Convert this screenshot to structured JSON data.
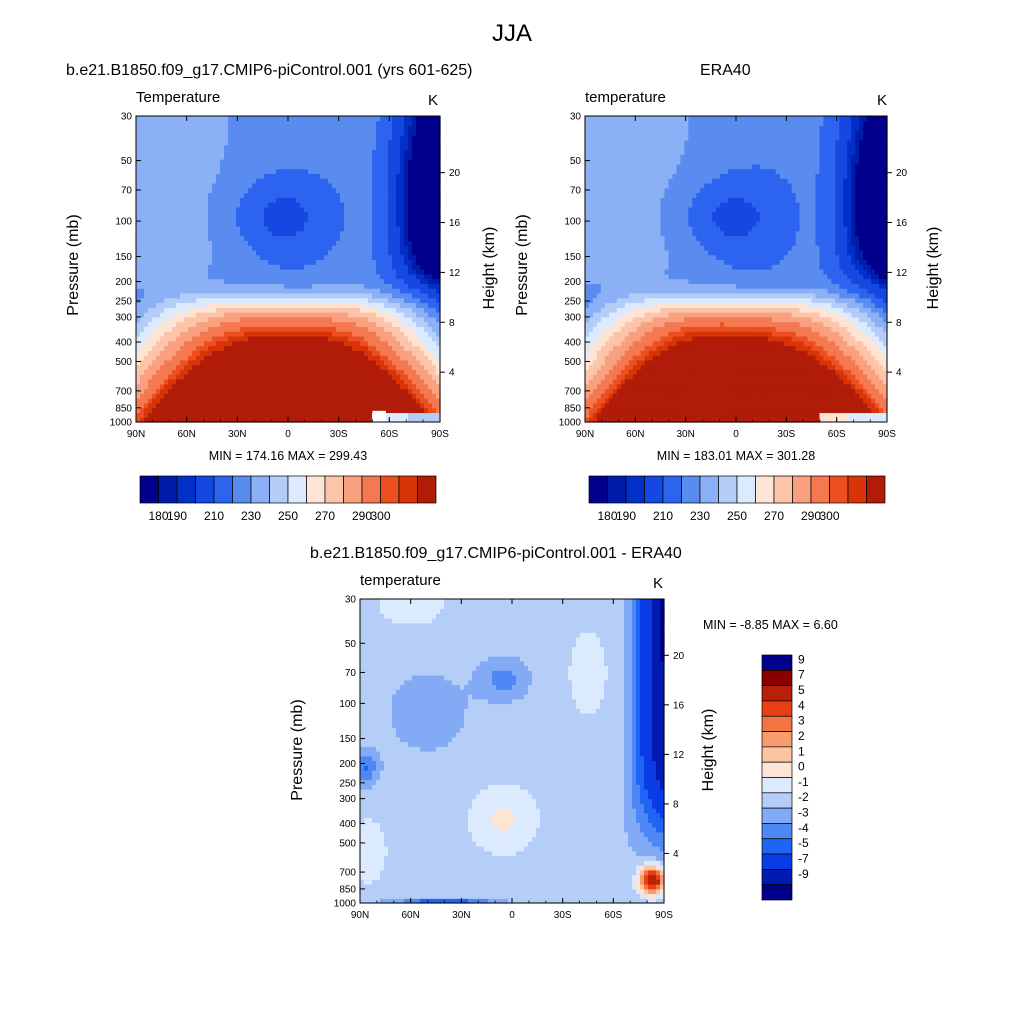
{
  "title": "JJA",
  "colors": {
    "temp_levels": [
      "#00008c",
      "#001ca8",
      "#0030c8",
      "#1448e0",
      "#2c64f0",
      "#5a8cf0",
      "#8cb0f5",
      "#b4ccf8",
      "#dceaff",
      "#fde4d4",
      "#fcc4a8",
      "#f8a080",
      "#f47850",
      "#ec5020",
      "#d83408",
      "#b01c08",
      "#880000"
    ],
    "diff_levels": [
      "#00008c",
      "#001cb0",
      "#0a3ce6",
      "#2064f5",
      "#4e88f5",
      "#82aaf5",
      "#b4cef8",
      "#dceaff",
      "#fde4d4",
      "#fcc4a0",
      "#f89c70",
      "#f47444",
      "#e84014",
      "#b82008",
      "#880000"
    ]
  },
  "panels": [
    {
      "id": "model",
      "title": "b.e21.B1850.f09_g17.CMIP6-piControl.001 (yrs 601-625)",
      "left_label": "Temperature",
      "right_label": "K",
      "ylabel": "Pressure (mb)",
      "y2label": "Height (km)",
      "min_max_text": "MIN = 174.16  MAX = 299.43"
    },
    {
      "id": "obs",
      "title": "ERA40",
      "left_label": "temperature",
      "right_label": "K",
      "ylabel": "Pressure (mb)",
      "y2label": "Height (km)",
      "min_max_text": "MIN = 183.01  MAX = 301.28"
    },
    {
      "id": "diff",
      "title": "b.e21.B1850.f09_g17.CMIP6-piControl.001 - ERA40",
      "left_label": "temperature",
      "right_label": "K",
      "ylabel": "Pressure (mb)",
      "y2label": "Height (km)",
      "min_max_text": "MIN =  -8.85  MAX =   6.60"
    }
  ],
  "chart_data": [
    {
      "type": "heatmap",
      "title": "b.e21.B1850.f09_g17.CMIP6-piControl.001 (yrs 601-625)",
      "xlabel": "",
      "ylabel": "Pressure (mb)",
      "y2label": "Height (km)",
      "x_ticks": [
        "90N",
        "60N",
        "30N",
        "0",
        "30S",
        "60S",
        "90S"
      ],
      "y_ticks": [
        "30",
        "50",
        "70",
        "100",
        "150",
        "200",
        "250",
        "300",
        "400",
        "500",
        "700",
        "850",
        "1000"
      ],
      "y2_ticks": [
        "4",
        "8",
        "12",
        "16",
        "20"
      ],
      "y_scale": "log",
      "ylim": [
        1000,
        30
      ],
      "xlim": [
        90,
        -90
      ],
      "units": "K",
      "min": 174.16,
      "max": 299.43,
      "colorbar_ticks": [
        "180",
        "190",
        "210",
        "230",
        "250",
        "270",
        "290",
        "300"
      ],
      "colorbar_levels": [
        180,
        185,
        190,
        200,
        210,
        220,
        230,
        240,
        250,
        260,
        270,
        280,
        290,
        295,
        300
      ]
    },
    {
      "type": "heatmap",
      "title": "ERA40",
      "xlabel": "",
      "ylabel": "Pressure (mb)",
      "y2label": "Height (km)",
      "x_ticks": [
        "90N",
        "60N",
        "30N",
        "0",
        "30S",
        "60S",
        "90S"
      ],
      "y_ticks": [
        "30",
        "50",
        "70",
        "100",
        "150",
        "200",
        "250",
        "300",
        "400",
        "500",
        "700",
        "850",
        "1000"
      ],
      "y2_ticks": [
        "4",
        "8",
        "12",
        "16",
        "20"
      ],
      "y_scale": "log",
      "ylim": [
        1000,
        30
      ],
      "xlim": [
        90,
        -90
      ],
      "units": "K",
      "min": 183.01,
      "max": 301.28,
      "colorbar_ticks": [
        "180",
        "190",
        "210",
        "230",
        "250",
        "270",
        "290",
        "300"
      ],
      "colorbar_levels": [
        180,
        185,
        190,
        200,
        210,
        220,
        230,
        240,
        250,
        260,
        270,
        280,
        290,
        295,
        300
      ]
    },
    {
      "type": "heatmap",
      "title": "b.e21.B1850.f09_g17.CMIP6-piControl.001 - ERA40",
      "xlabel": "",
      "ylabel": "Pressure (mb)",
      "y2label": "Height (km)",
      "x_ticks": [
        "90N",
        "60N",
        "30N",
        "0",
        "30S",
        "60S",
        "90S"
      ],
      "y_ticks": [
        "30",
        "50",
        "70",
        "100",
        "150",
        "200",
        "250",
        "300",
        "400",
        "500",
        "700",
        "850",
        "1000"
      ],
      "y2_ticks": [
        "4",
        "8",
        "12",
        "16",
        "20"
      ],
      "y_scale": "log",
      "ylim": [
        1000,
        30
      ],
      "xlim": [
        90,
        -90
      ],
      "units": "K",
      "min": -8.85,
      "max": 6.6,
      "colorbar_ticks": [
        "9",
        "7",
        "5",
        "4",
        "3",
        "2",
        "1",
        "0",
        "-1",
        "-2",
        "-3",
        "-4",
        "-5",
        "-7",
        "-9"
      ],
      "colorbar_levels": [
        -9,
        -7,
        -5,
        -4,
        -3,
        -2,
        -1,
        0,
        1,
        2,
        3,
        4,
        5,
        7,
        9
      ]
    }
  ]
}
